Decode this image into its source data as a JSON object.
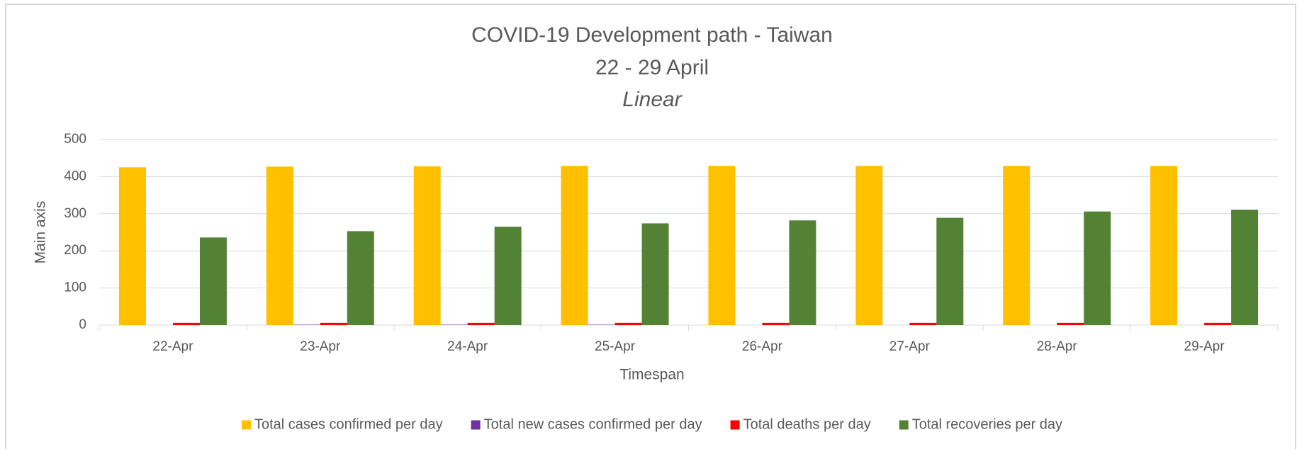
{
  "chart_data": {
    "type": "bar",
    "title": "COVID-19 Development path - Taiwan",
    "subtitle": "22 - 29 April",
    "subtitle2": "Linear",
    "x_label": "Timespan",
    "y_label": "Main axis",
    "categories": [
      "22-Apr",
      "23-Apr",
      "24-Apr",
      "25-Apr",
      "26-Apr",
      "27-Apr",
      "28-Apr",
      "29-Apr"
    ],
    "series": [
      {
        "name": "Total cases confirmed per day",
        "color": "#ffc000",
        "values": [
          425,
          427,
          428,
          429,
          429,
          429,
          429,
          429
        ]
      },
      {
        "name": "Total new cases confirmed per day",
        "color": "#7030a0",
        "values": [
          0,
          1,
          1,
          1,
          0,
          0,
          0,
          0
        ]
      },
      {
        "name": "Total deaths per day",
        "color": "#ff0000",
        "values": [
          6,
          6,
          6,
          6,
          6,
          6,
          6,
          6
        ]
      },
      {
        "name": "Total recoveries per day",
        "color": "#548235",
        "values": [
          236,
          253,
          265,
          274,
          282,
          289,
          306,
          311
        ]
      }
    ],
    "ylim": [
      0,
      500
    ],
    "yticks": [
      0,
      100,
      200,
      300,
      400,
      500
    ],
    "grid": true,
    "legend": "bottom"
  }
}
